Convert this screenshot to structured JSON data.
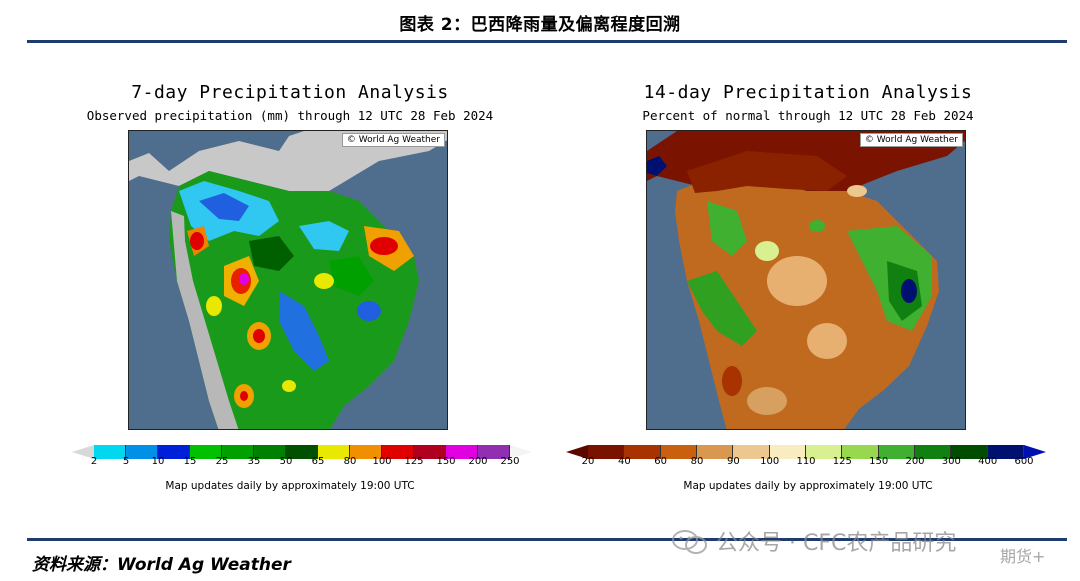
{
  "figure_title": "图表 2：巴西降雨量及偏离程度回溯",
  "left_panel": {
    "title": "7-day Precipitation Analysis",
    "subtitle": "Observed precipitation (mm) through 12 UTC 28 Feb 2024",
    "credit": "© World Ag Weather",
    "legend_ticks": [
      "2",
      "5",
      "10",
      "15",
      "25",
      "35",
      "50",
      "65",
      "80",
      "100",
      "125",
      "150",
      "200",
      "250"
    ],
    "legend_colors": [
      "#00d8f0",
      "#0090e8",
      "#0020d8",
      "#00c000",
      "#00a000",
      "#008000",
      "#005000",
      "#e8e800",
      "#f09000",
      "#e00000",
      "#b00020",
      "#e000e0",
      "#9030b0"
    ],
    "note": "Map updates daily by approximately 19:00 UTC"
  },
  "right_panel": {
    "title": "14-day Precipitation Analysis",
    "subtitle": "Percent of normal through 12 UTC 28 Feb 2024",
    "credit": "© World Ag Weather",
    "legend_ticks": [
      "20",
      "40",
      "60",
      "80",
      "90",
      "100",
      "110",
      "125",
      "150",
      "200",
      "300",
      "400",
      "600"
    ],
    "legend_colors": [
      "#7a1200",
      "#a83200",
      "#c86010",
      "#d89850",
      "#ecc890",
      "#f8ecc0",
      "#d8f090",
      "#98d850",
      "#40b030",
      "#108010",
      "#004c00",
      "#001070"
    ],
    "note": "Map updates daily by approximately 19:00 UTC"
  },
  "source": "资料来源：World Ag Weather",
  "watermark": {
    "text": "公众号 · CFC农产品研究",
    "sub": "期货+"
  }
}
